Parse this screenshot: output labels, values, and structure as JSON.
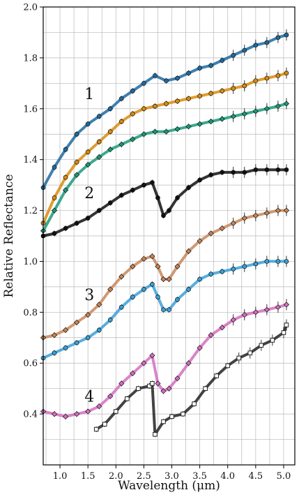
{
  "chart_data": {
    "type": "scatter",
    "title": "",
    "xlabel": "Wavelength (μm)",
    "ylabel": "Relative Reflectance",
    "xlim": [
      0.7,
      5.2
    ],
    "ylim": [
      0.2,
      2.0
    ],
    "xticks": [
      1.0,
      1.5,
      2.0,
      2.5,
      3.0,
      3.5,
      4.0,
      4.5,
      5.0
    ],
    "xtick_labels": [
      "1.0",
      "1.5",
      "2.0",
      "2.5",
      "3.0",
      "3.5",
      "4.0",
      "4.5",
      "5.0"
    ],
    "yticks": [
      0.4,
      0.6,
      0.8,
      1.0,
      1.2,
      1.4,
      1.6,
      1.8,
      2.0
    ],
    "ytick_labels": [
      "0.4",
      "0.6",
      "0.8",
      "1.0",
      "1.2",
      "1.4",
      "1.6",
      "1.8",
      "2.0"
    ],
    "grid": true,
    "legend": "none",
    "group_labels": [
      {
        "text": "1",
        "x": 1.6,
        "y": 1.66
      },
      {
        "text": "2",
        "x": 1.6,
        "y": 1.27
      },
      {
        "text": "3",
        "x": 1.6,
        "y": 0.87
      },
      {
        "text": "4",
        "x": 1.6,
        "y": 0.47
      }
    ],
    "series": [
      {
        "color": "#1f6aa0",
        "marker": "circle",
        "errors": true,
        "x": [
          0.7,
          0.9,
          1.1,
          1.3,
          1.5,
          1.7,
          1.9,
          2.1,
          2.3,
          2.5,
          2.7,
          2.9,
          3.1,
          3.3,
          3.5,
          3.7,
          3.9,
          4.1,
          4.3,
          4.5,
          4.7,
          4.9,
          5.05
        ],
        "y": [
          1.29,
          1.37,
          1.44,
          1.5,
          1.54,
          1.57,
          1.6,
          1.64,
          1.67,
          1.7,
          1.73,
          1.71,
          1.72,
          1.74,
          1.76,
          1.77,
          1.79,
          1.81,
          1.83,
          1.85,
          1.86,
          1.88,
          1.89
        ]
      },
      {
        "color": "#d88c10",
        "marker": "circle",
        "errors": true,
        "x": [
          0.7,
          0.9,
          1.1,
          1.3,
          1.5,
          1.7,
          1.9,
          2.1,
          2.3,
          2.5,
          2.7,
          2.9,
          3.1,
          3.3,
          3.5,
          3.7,
          3.9,
          4.1,
          4.3,
          4.5,
          4.7,
          4.9,
          5.05
        ],
        "y": [
          1.15,
          1.25,
          1.33,
          1.39,
          1.43,
          1.47,
          1.51,
          1.55,
          1.58,
          1.6,
          1.61,
          1.62,
          1.63,
          1.64,
          1.65,
          1.66,
          1.67,
          1.68,
          1.69,
          1.71,
          1.72,
          1.73,
          1.74
        ]
      },
      {
        "color": "#1a9a7a",
        "marker": "diamond",
        "errors": true,
        "x": [
          0.7,
          0.9,
          1.1,
          1.3,
          1.5,
          1.7,
          1.9,
          2.1,
          2.3,
          2.5,
          2.7,
          2.9,
          3.1,
          3.3,
          3.5,
          3.7,
          3.9,
          4.1,
          4.3,
          4.5,
          4.7,
          4.9,
          5.05
        ],
        "y": [
          1.12,
          1.2,
          1.28,
          1.34,
          1.38,
          1.41,
          1.44,
          1.46,
          1.48,
          1.5,
          1.51,
          1.51,
          1.52,
          1.53,
          1.54,
          1.55,
          1.56,
          1.57,
          1.58,
          1.59,
          1.6,
          1.61,
          1.62
        ]
      },
      {
        "color": "#111111",
        "marker": "circle",
        "errors": true,
        "x": [
          0.7,
          0.9,
          1.1,
          1.3,
          1.5,
          1.7,
          1.9,
          2.1,
          2.3,
          2.5,
          2.65,
          2.75,
          2.85,
          2.95,
          3.1,
          3.3,
          3.5,
          3.7,
          3.9,
          4.1,
          4.3,
          4.5,
          4.7,
          4.9,
          5.05
        ],
        "y": [
          1.1,
          1.11,
          1.13,
          1.15,
          1.17,
          1.2,
          1.23,
          1.26,
          1.28,
          1.3,
          1.31,
          1.25,
          1.18,
          1.2,
          1.25,
          1.29,
          1.32,
          1.34,
          1.35,
          1.35,
          1.35,
          1.36,
          1.36,
          1.36,
          1.36
        ]
      },
      {
        "color": "#c8875a",
        "marker": "diamond",
        "errors": true,
        "x": [
          0.7,
          0.9,
          1.1,
          1.3,
          1.5,
          1.7,
          1.9,
          2.1,
          2.3,
          2.5,
          2.65,
          2.75,
          2.85,
          2.95,
          3.1,
          3.3,
          3.5,
          3.7,
          3.9,
          4.1,
          4.3,
          4.5,
          4.7,
          4.9,
          5.05
        ],
        "y": [
          0.7,
          0.71,
          0.73,
          0.76,
          0.79,
          0.83,
          0.89,
          0.94,
          0.98,
          1.01,
          1.02,
          0.98,
          0.93,
          0.93,
          0.98,
          1.04,
          1.08,
          1.11,
          1.13,
          1.15,
          1.17,
          1.18,
          1.19,
          1.2,
          1.2
        ]
      },
      {
        "color": "#3aa0d8",
        "marker": "circle",
        "errors": true,
        "x": [
          0.7,
          0.9,
          1.1,
          1.3,
          1.5,
          1.7,
          1.9,
          2.1,
          2.3,
          2.5,
          2.65,
          2.75,
          2.85,
          2.95,
          3.1,
          3.3,
          3.5,
          3.7,
          3.9,
          4.1,
          4.3,
          4.5,
          4.7,
          4.9,
          5.05
        ],
        "y": [
          0.62,
          0.64,
          0.66,
          0.68,
          0.7,
          0.73,
          0.77,
          0.82,
          0.86,
          0.89,
          0.91,
          0.86,
          0.81,
          0.81,
          0.85,
          0.89,
          0.93,
          0.95,
          0.96,
          0.97,
          0.98,
          0.99,
          1.0,
          1.0,
          1.0
        ]
      },
      {
        "color": "#d46fbf",
        "marker": "diamond",
        "errors": true,
        "x": [
          0.7,
          0.9,
          1.1,
          1.3,
          1.5,
          1.7,
          1.9,
          2.1,
          2.3,
          2.5,
          2.65,
          2.75,
          2.85,
          2.95,
          3.1,
          3.3,
          3.5,
          3.7,
          3.9,
          4.1,
          4.3,
          4.5,
          4.7,
          4.9,
          5.05
        ],
        "y": [
          0.41,
          0.4,
          0.39,
          0.4,
          0.41,
          0.43,
          0.47,
          0.52,
          0.56,
          0.6,
          0.63,
          0.52,
          0.49,
          0.5,
          0.54,
          0.6,
          0.66,
          0.71,
          0.74,
          0.77,
          0.79,
          0.8,
          0.81,
          0.82,
          0.83
        ]
      },
      {
        "color": "#222222",
        "marker": "open-square",
        "errors": true,
        "x": [
          1.65,
          1.8,
          2.0,
          2.2,
          2.4,
          2.6,
          2.65,
          2.7,
          2.85,
          3.0,
          3.2,
          3.4,
          3.6,
          3.8,
          4.0,
          4.2,
          4.4,
          4.6,
          4.8,
          5.0,
          5.05
        ],
        "y": [
          0.34,
          0.36,
          0.41,
          0.46,
          0.5,
          0.51,
          0.52,
          0.32,
          0.37,
          0.39,
          0.4,
          0.44,
          0.5,
          0.55,
          0.59,
          0.62,
          0.64,
          0.67,
          0.69,
          0.72,
          0.75
        ]
      }
    ]
  }
}
